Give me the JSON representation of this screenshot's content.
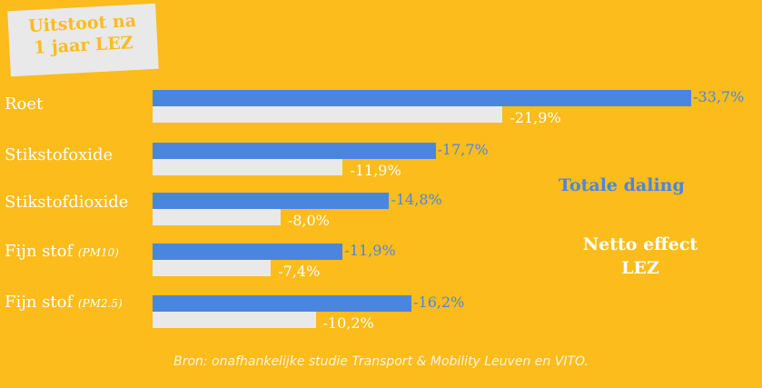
{
  "title": {
    "line1": "Uitstoot na",
    "line2": "1 jaar LEZ"
  },
  "colors": {
    "background": "#FBBC1C",
    "total": "#4A86E0",
    "net": "#E9E9E9"
  },
  "chart_data": {
    "type": "bar",
    "orientation": "horizontal",
    "title": "Uitstoot na 1 jaar LEZ",
    "categories": [
      {
        "name": "Roet",
        "sub": ""
      },
      {
        "name": "Stikstofoxide",
        "sub": ""
      },
      {
        "name": "Stikstofdioxide",
        "sub": ""
      },
      {
        "name": "Fijn stof",
        "sub": "(PM10)"
      },
      {
        "name": "Fijn stof",
        "sub": "(PM2.5)"
      }
    ],
    "series": [
      {
        "name": "Totale daling",
        "color": "#4A86E0",
        "values": [
          -33.7,
          -17.7,
          -14.8,
          -11.9,
          -16.2
        ],
        "labels": [
          "-33,7%",
          "-17,7%",
          "-14,8%",
          "-11,9%",
          "-16,2%"
        ]
      },
      {
        "name": "Netto effect LEZ",
        "color": "#E9E9E9",
        "values": [
          -21.9,
          -11.9,
          -8.0,
          -7.4,
          -10.2
        ],
        "labels": [
          "-21,9%",
          "-11,9%",
          "-8,0%",
          "-7,4%",
          "-10,2%"
        ]
      }
    ],
    "xlabel": "",
    "ylabel": "",
    "unit": "%",
    "grid": false,
    "legend": {
      "position": "right",
      "entries": [
        "Totale daling",
        "Netto effect LEZ"
      ]
    }
  },
  "legend": {
    "total": "Totale daling",
    "net_line1": "Netto effect",
    "net_line2": "LEZ"
  },
  "source": "Bron: onafhankelijke studie Transport & Mobility Leuven en VITO."
}
